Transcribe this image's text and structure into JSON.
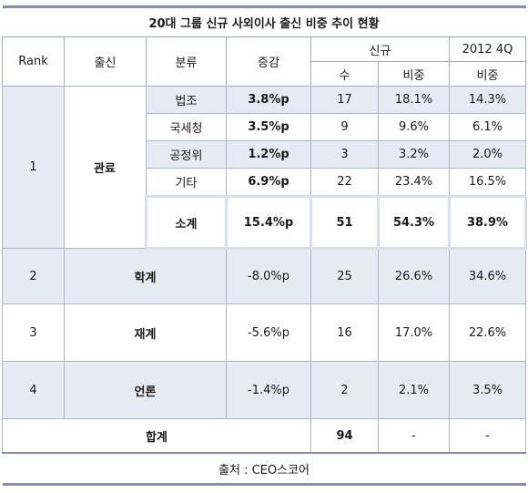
{
  "title": "20대 그룹 신규 사외이사 출신 비중 추이 현황",
  "headers": {
    "rank": "Rank",
    "origin": "출신",
    "category": "분류",
    "change": "증감",
    "new": "신규",
    "q4": "2012 4Q",
    "count": "수",
    "share": "비중",
    "share_q4": "비중"
  },
  "rank1": {
    "rank": "1",
    "origin": "관료",
    "rows": [
      {
        "category": "법조",
        "change": "3.8%p",
        "count": "17",
        "share": "18.1%",
        "q4": "14.3%"
      },
      {
        "category": "국세청",
        "change": "3.5%p",
        "count": "9",
        "share": "9.6%",
        "q4": "6.1%"
      },
      {
        "category": "공정위",
        "change": "1.2%p",
        "count": "3",
        "share": "3.2%",
        "q4": "2.0%"
      },
      {
        "category": "기타",
        "change": "6.9%p",
        "count": "22",
        "share": "23.4%",
        "q4": "16.5%"
      }
    ],
    "subtotal": {
      "label": "소계",
      "change": "15.4%p",
      "count": "51",
      "share": "54.3%",
      "q4": "38.9%"
    }
  },
  "others": [
    {
      "rank": "2",
      "origin": "학계",
      "change": "-8.0%p",
      "count": "25",
      "share": "26.6%",
      "q4": "34.6%"
    },
    {
      "rank": "3",
      "origin": "재계",
      "change": "-5.6%p",
      "count": "16",
      "share": "17.0%",
      "q4": "22.6%"
    },
    {
      "rank": "4",
      "origin": "언론",
      "change": "-1.4%p",
      "count": "2",
      "share": "2.1%",
      "q4": "3.5%"
    }
  ],
  "total": {
    "label": "합계",
    "count": "94",
    "share": "-",
    "q4": "-"
  },
  "source": "출처 : CEO스코어"
}
